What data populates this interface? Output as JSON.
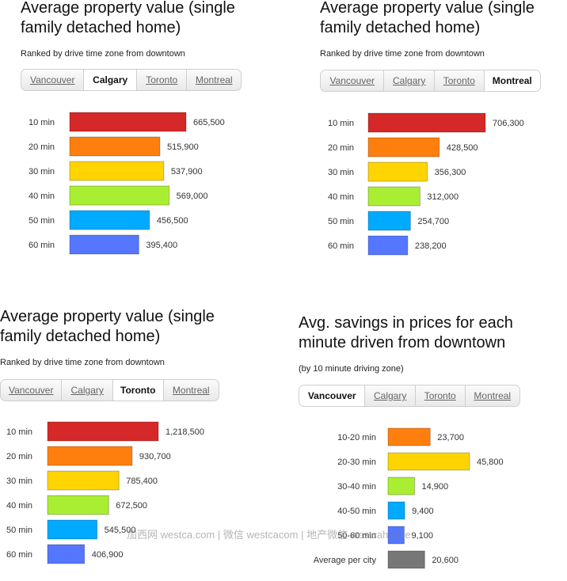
{
  "panels": [
    {
      "title": "Average property value (single family detached home)",
      "subtitle": "Ranked by drive time zone from downtown",
      "tabs": [
        "Vancouver",
        "Calgary",
        "Toronto",
        "Montreal"
      ],
      "active_tab": "Calgary"
    },
    {
      "title": "Average property value (single family detached home)",
      "subtitle": "Ranked by drive time zone from downtown",
      "tabs": [
        "Vancouver",
        "Calgary",
        "Toronto",
        "Montreal"
      ],
      "active_tab": "Montreal"
    },
    {
      "title": "Average property value (single family detached home)",
      "subtitle": "Ranked by drive time zone from downtown",
      "tabs": [
        "Vancouver",
        "Calgary",
        "Toronto",
        "Montreal"
      ],
      "active_tab": "Toronto"
    },
    {
      "title": "Avg. savings in prices for each minute driven from downtown",
      "subtitle": "(by 10 minute driving zone)",
      "tabs": [
        "Vancouver",
        "Calgary",
        "Toronto",
        "Montreal"
      ],
      "active_tab": "Vancouver"
    }
  ],
  "colors": {
    "red": "#d62828",
    "orange": "#ff7f0e",
    "yellow": "#ffd400",
    "lime": "#aaee33",
    "sky": "#00aaff",
    "blue": "#5577ff",
    "gray": "#777777"
  },
  "watermark": "加西网 westca.com | 微信 westcacom | 地产微信 westcahouse",
  "chart_data": [
    {
      "type": "bar",
      "orientation": "horizontal",
      "title": "Average property value (single family detached home)",
      "subtitle": "Ranked by drive time zone from downtown",
      "city": "Calgary",
      "categories": [
        "10 min",
        "20 min",
        "30 min",
        "40 min",
        "50 min",
        "60 min"
      ],
      "values": [
        665500,
        515900,
        537900,
        569000,
        456500,
        395400
      ],
      "value_labels": [
        "665,500",
        "515,900",
        "537,900",
        "569,000",
        "456,500",
        "395,400"
      ],
      "bar_colors": [
        "#d62828",
        "#ff7f0e",
        "#ffd400",
        "#aaee33",
        "#00aaff",
        "#5577ff"
      ]
    },
    {
      "type": "bar",
      "orientation": "horizontal",
      "title": "Average property value (single family detached home)",
      "subtitle": "Ranked by drive time zone from downtown",
      "city": "Montreal",
      "categories": [
        "10 min",
        "20 min",
        "30 min",
        "40 min",
        "50 min",
        "60 min"
      ],
      "values": [
        706300,
        428500,
        356300,
        312000,
        254700,
        238200
      ],
      "value_labels": [
        "706,300",
        "428,500",
        "356,300",
        "312,000",
        "254,700",
        "238,200"
      ],
      "bar_colors": [
        "#d62828",
        "#ff7f0e",
        "#ffd400",
        "#aaee33",
        "#00aaff",
        "#5577ff"
      ]
    },
    {
      "type": "bar",
      "orientation": "horizontal",
      "title": "Average property value (single family detached home)",
      "subtitle": "Ranked by drive time zone from downtown",
      "city": "Toronto",
      "categories": [
        "10 min",
        "20 min",
        "30 min",
        "40 min",
        "50 min",
        "60 min"
      ],
      "values": [
        1218500,
        930700,
        785400,
        672500,
        545500,
        406900
      ],
      "value_labels": [
        "1,218,500",
        "930,700",
        "785,400",
        "672,500",
        "545,500",
        "406,900"
      ],
      "bar_colors": [
        "#d62828",
        "#ff7f0e",
        "#ffd400",
        "#aaee33",
        "#00aaff",
        "#5577ff"
      ]
    },
    {
      "type": "bar",
      "orientation": "horizontal",
      "title": "Avg. savings in prices for each minute driven from downtown",
      "subtitle": "(by 10 minute driving zone)",
      "city": "Vancouver",
      "categories": [
        "10-20 min",
        "20-30 min",
        "30-40 min",
        "40-50 min",
        "50-60 min",
        "Average per city"
      ],
      "values": [
        23700,
        45800,
        14900,
        9400,
        9100,
        20600
      ],
      "value_labels": [
        "23,700",
        "45,800",
        "14,900",
        "9,400",
        "9,100",
        "20,600"
      ],
      "bar_colors": [
        "#ff7f0e",
        "#ffd400",
        "#aaee33",
        "#00aaff",
        "#5577ff",
        "#777777"
      ]
    }
  ]
}
